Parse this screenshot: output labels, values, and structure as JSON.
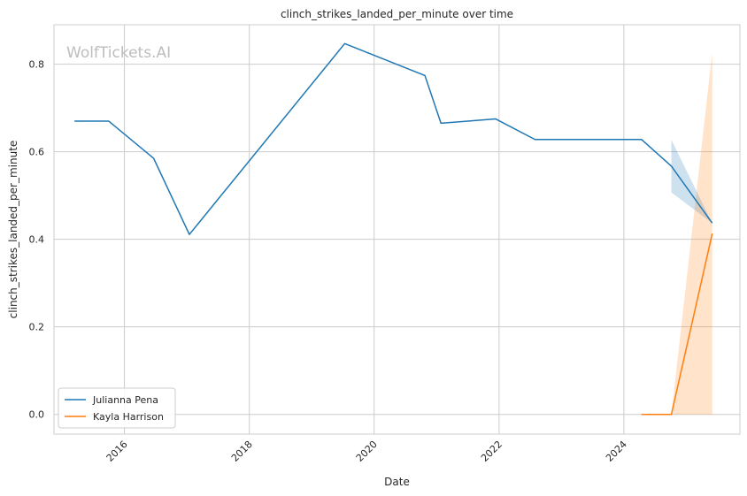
{
  "chart_data": {
    "type": "line",
    "title": "clinch_strikes_landed_per_minute over time",
    "xlabel": "Date",
    "ylabel": "clinch_strikes_landed_per_minute",
    "watermark": "WolfTickets.AI",
    "xlim": [
      "2014-11-15",
      "2025-11-10"
    ],
    "ylim": [
      -0.045,
      0.89
    ],
    "x_ticks": [
      "2016",
      "2018",
      "2020",
      "2022",
      "2024"
    ],
    "y_ticks": [
      "0.0",
      "0.2",
      "0.4",
      "0.6",
      "0.8"
    ],
    "grid": true,
    "legend_position": "lower-left",
    "series": [
      {
        "name": "Julianna Pena",
        "color": "#1f77b4",
        "points": [
          {
            "x": "2015-03-15",
            "y": 0.67
          },
          {
            "x": "2015-10-01",
            "y": 0.67
          },
          {
            "x": "2016-06-20",
            "y": 0.585
          },
          {
            "x": "2017-01-15",
            "y": 0.411
          },
          {
            "x": "2019-07-13",
            "y": 0.847
          },
          {
            "x": "2020-10-24",
            "y": 0.774
          },
          {
            "x": "2021-01-26",
            "y": 0.665
          },
          {
            "x": "2021-12-11",
            "y": 0.675
          },
          {
            "x": "2022-07-30",
            "y": 0.628
          },
          {
            "x": "2024-04-13",
            "y": 0.628
          },
          {
            "x": "2024-10-05",
            "y": 0.567
          },
          {
            "x": "2025-06-01",
            "y": 0.437
          }
        ],
        "band": [
          {
            "x": "2024-10-05",
            "low": 0.507,
            "high": 0.627
          },
          {
            "x": "2025-06-01",
            "low": 0.437,
            "high": 0.437
          }
        ]
      },
      {
        "name": "Kayla Harrison",
        "color": "#ff7f0e",
        "points": [
          {
            "x": "2024-04-13",
            "y": 0.0
          },
          {
            "x": "2024-10-05",
            "y": 0.0
          },
          {
            "x": "2025-06-01",
            "y": 0.413
          }
        ],
        "band": [
          {
            "x": "2024-10-05",
            "low": 0.0,
            "high": 0.0
          },
          {
            "x": "2025-06-01",
            "low": 0.0,
            "high": 0.827
          }
        ]
      }
    ]
  }
}
